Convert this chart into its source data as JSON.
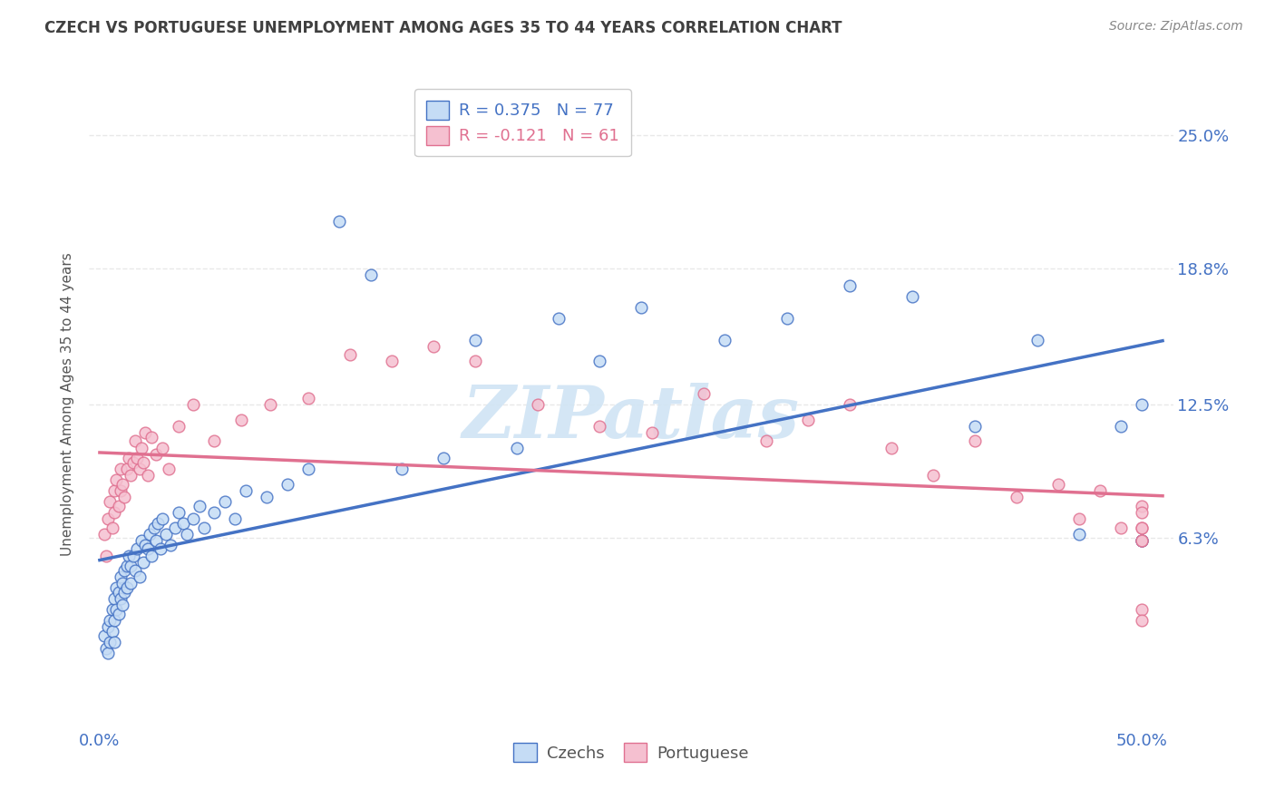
{
  "title": "CZECH VS PORTUGUESE UNEMPLOYMENT AMONG AGES 35 TO 44 YEARS CORRELATION CHART",
  "source": "Source: ZipAtlas.com",
  "ylabel_ticks": [
    "6.3%",
    "12.5%",
    "18.8%",
    "25.0%"
  ],
  "ylabel_tick_vals": [
    0.063,
    0.125,
    0.188,
    0.25
  ],
  "ylabel_label": "Unemployment Among Ages 35 to 44 years",
  "xlim": [
    -0.005,
    0.515
  ],
  "ylim": [
    -0.025,
    0.275
  ],
  "czech_R": 0.375,
  "czech_N": 77,
  "portuguese_R": -0.121,
  "portuguese_N": 61,
  "czech_color": "#c5dcf5",
  "czech_edge_color": "#4472c4",
  "portuguese_color": "#f5c0d0",
  "portuguese_edge_color": "#e07090",
  "trend_czech_color": "#4472c4",
  "trend_portuguese_color": "#e07090",
  "watermark": "ZIPatlas",
  "watermark_color": "#d0e4f4",
  "background_color": "#ffffff",
  "grid_color": "#e8e8e8",
  "title_color": "#404040",
  "axis_label_color": "#4472c4",
  "marker_size": 85,
  "czech_x": [
    0.002,
    0.003,
    0.004,
    0.004,
    0.005,
    0.005,
    0.006,
    0.006,
    0.007,
    0.007,
    0.007,
    0.008,
    0.008,
    0.009,
    0.009,
    0.01,
    0.01,
    0.011,
    0.011,
    0.012,
    0.012,
    0.013,
    0.013,
    0.014,
    0.015,
    0.015,
    0.016,
    0.017,
    0.018,
    0.019,
    0.02,
    0.021,
    0.022,
    0.023,
    0.024,
    0.025,
    0.026,
    0.027,
    0.028,
    0.029,
    0.03,
    0.032,
    0.034,
    0.036,
    0.038,
    0.04,
    0.042,
    0.045,
    0.048,
    0.05,
    0.055,
    0.06,
    0.065,
    0.07,
    0.08,
    0.09,
    0.1,
    0.115,
    0.13,
    0.145,
    0.165,
    0.18,
    0.2,
    0.22,
    0.24,
    0.26,
    0.3,
    0.33,
    0.36,
    0.39,
    0.42,
    0.45,
    0.47,
    0.49,
    0.5,
    0.5,
    0.5
  ],
  "czech_y": [
    0.018,
    0.012,
    0.022,
    0.01,
    0.025,
    0.015,
    0.03,
    0.02,
    0.035,
    0.025,
    0.015,
    0.04,
    0.03,
    0.038,
    0.028,
    0.045,
    0.035,
    0.042,
    0.032,
    0.048,
    0.038,
    0.05,
    0.04,
    0.055,
    0.05,
    0.042,
    0.055,
    0.048,
    0.058,
    0.045,
    0.062,
    0.052,
    0.06,
    0.058,
    0.065,
    0.055,
    0.068,
    0.062,
    0.07,
    0.058,
    0.072,
    0.065,
    0.06,
    0.068,
    0.075,
    0.07,
    0.065,
    0.072,
    0.078,
    0.068,
    0.075,
    0.08,
    0.072,
    0.085,
    0.082,
    0.088,
    0.095,
    0.21,
    0.185,
    0.095,
    0.1,
    0.155,
    0.105,
    0.165,
    0.145,
    0.17,
    0.155,
    0.165,
    0.18,
    0.175,
    0.115,
    0.155,
    0.065,
    0.115,
    0.125,
    0.062,
    0.062
  ],
  "portuguese_x": [
    0.002,
    0.003,
    0.004,
    0.005,
    0.006,
    0.007,
    0.007,
    0.008,
    0.009,
    0.01,
    0.01,
    0.011,
    0.012,
    0.013,
    0.014,
    0.015,
    0.016,
    0.017,
    0.018,
    0.019,
    0.02,
    0.021,
    0.022,
    0.023,
    0.025,
    0.027,
    0.03,
    0.033,
    0.038,
    0.045,
    0.055,
    0.068,
    0.082,
    0.1,
    0.12,
    0.14,
    0.16,
    0.18,
    0.21,
    0.24,
    0.265,
    0.29,
    0.32,
    0.34,
    0.36,
    0.38,
    0.4,
    0.42,
    0.44,
    0.46,
    0.47,
    0.48,
    0.49,
    0.5,
    0.5,
    0.5,
    0.5,
    0.5,
    0.5,
    0.5,
    0.5
  ],
  "portuguese_y": [
    0.065,
    0.055,
    0.072,
    0.08,
    0.068,
    0.085,
    0.075,
    0.09,
    0.078,
    0.085,
    0.095,
    0.088,
    0.082,
    0.095,
    0.1,
    0.092,
    0.098,
    0.108,
    0.1,
    0.095,
    0.105,
    0.098,
    0.112,
    0.092,
    0.11,
    0.102,
    0.105,
    0.095,
    0.115,
    0.125,
    0.108,
    0.118,
    0.125,
    0.128,
    0.148,
    0.145,
    0.152,
    0.145,
    0.125,
    0.115,
    0.112,
    0.13,
    0.108,
    0.118,
    0.125,
    0.105,
    0.092,
    0.108,
    0.082,
    0.088,
    0.072,
    0.085,
    0.068,
    0.078,
    0.068,
    0.062,
    0.075,
    0.068,
    0.03,
    0.062,
    0.025
  ]
}
